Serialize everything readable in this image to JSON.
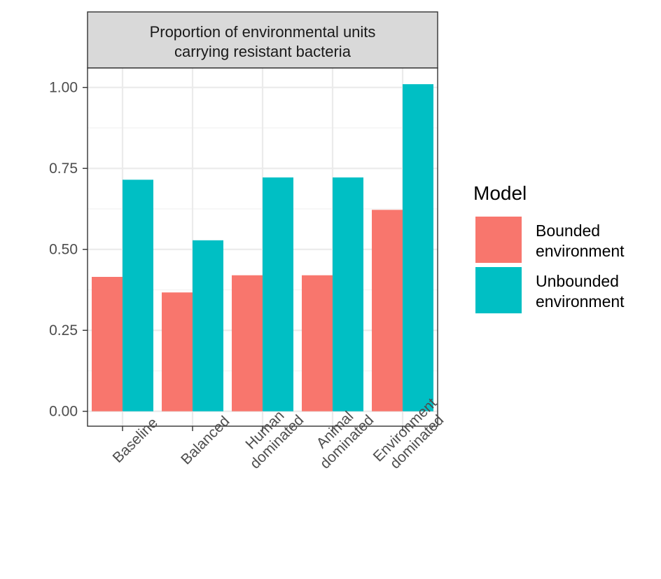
{
  "chart_data": {
    "type": "bar",
    "title": "",
    "facet_label": [
      "Proportion of environmental units",
      "carrying resistant bacteria"
    ],
    "xlabel": "",
    "ylabel": "",
    "categories": [
      [
        "Baseline"
      ],
      [
        "Balanced"
      ],
      [
        "Human",
        "dominated"
      ],
      [
        "Animal",
        "dominated"
      ],
      [
        "Environment",
        "dominated"
      ]
    ],
    "series": [
      {
        "name": "Bounded environment",
        "name_lines": [
          "Bounded",
          "environment"
        ],
        "color": "#F8766D",
        "values": [
          0.415,
          0.367,
          0.42,
          0.42,
          0.622
        ]
      },
      {
        "name": "Unbounded environment",
        "name_lines": [
          "Unbounded",
          "environment"
        ],
        "color": "#00BFC4",
        "values": [
          0.715,
          0.528,
          0.722,
          0.722,
          1.01
        ]
      }
    ],
    "ylim": [
      -0.046,
      1.06
    ],
    "yticks": [
      0,
      0.25,
      0.5,
      0.75,
      1.0
    ],
    "ytick_labels": [
      "0.00",
      "0.25",
      "0.50",
      "0.75",
      "1.00"
    ],
    "grid": true,
    "legend": {
      "title": "Model",
      "placement": "right"
    }
  }
}
